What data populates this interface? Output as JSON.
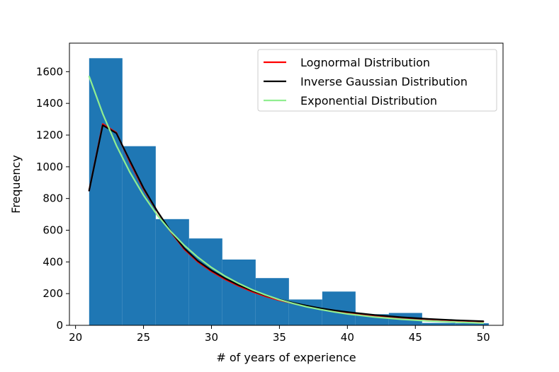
{
  "chart_data": {
    "type": "bar",
    "subtype": "histogram-with-fitted-curves",
    "title": "",
    "xlabel": "# of years of experience",
    "ylabel": "Frequency",
    "xlim": [
      19.55,
      51.45
    ],
    "ylim": [
      0,
      1780
    ],
    "xticks": [
      20,
      25,
      30,
      35,
      40,
      45,
      50
    ],
    "yticks": [
      0,
      200,
      400,
      600,
      800,
      1000,
      1200,
      1400,
      1600
    ],
    "bar_color": "#1f77b4",
    "bins": [
      {
        "x0": 21.0,
        "x1": 23.45,
        "value": 1685
      },
      {
        "x0": 23.45,
        "x1": 25.9,
        "value": 1130
      },
      {
        "x0": 25.9,
        "x1": 28.35,
        "value": 670
      },
      {
        "x0": 28.35,
        "x1": 30.8,
        "value": 548
      },
      {
        "x0": 30.8,
        "x1": 33.25,
        "value": 415
      },
      {
        "x0": 33.25,
        "x1": 35.7,
        "value": 298
      },
      {
        "x0": 35.7,
        "x1": 38.15,
        "value": 163
      },
      {
        "x0": 38.15,
        "x1": 40.6,
        "value": 213
      },
      {
        "x0": 40.6,
        "x1": 43.05,
        "value": 70
      },
      {
        "x0": 43.05,
        "x1": 45.5,
        "value": 78
      },
      {
        "x0": 45.5,
        "x1": 47.95,
        "value": 15
      },
      {
        "x0": 47.95,
        "x1": 50.4,
        "value": 13
      }
    ],
    "legend_position": "top-right",
    "series": [
      {
        "name": "Lognormal Distribution",
        "color": "#ff0000",
        "x": [
          21,
          22,
          23,
          24,
          25,
          26,
          27,
          28,
          29,
          30,
          31,
          32,
          33,
          34,
          35,
          36,
          37,
          38,
          39,
          40,
          42,
          44,
          46,
          48,
          50
        ],
        "y": [
          850,
          1270,
          1215,
          1030,
          860,
          720,
          590,
          480,
          400,
          340,
          290,
          248,
          212,
          182,
          158,
          138,
          120,
          105,
          92,
          80,
          62,
          48,
          38,
          30,
          24
        ]
      },
      {
        "name": "Inverse Gaussian Distribution",
        "color": "#000000",
        "x": [
          21,
          22,
          23,
          24,
          25,
          26,
          27,
          28,
          29,
          30,
          31,
          32,
          33,
          34,
          35,
          36,
          37,
          38,
          39,
          40,
          42,
          44,
          46,
          48,
          50
        ],
        "y": [
          850,
          1262,
          1212,
          1038,
          866,
          722,
          594,
          486,
          406,
          346,
          296,
          254,
          218,
          188,
          163,
          142,
          124,
          108,
          95,
          84,
          65,
          51,
          40,
          32,
          26
        ]
      },
      {
        "name": "Exponential Distribution",
        "color": "#90ee90",
        "x": [
          21,
          22,
          23,
          24,
          25,
          26,
          27,
          28,
          29,
          30,
          31,
          32,
          33,
          34,
          35,
          36,
          37,
          38,
          39,
          40,
          42,
          44,
          46,
          48,
          50
        ],
        "y": [
          1570,
          1335,
          1135,
          965,
          820,
          697,
          593,
          504,
          429,
          365,
          310,
          264,
          224,
          191,
          162,
          138,
          117,
          100,
          85,
          72,
          52,
          38,
          27,
          20,
          14
        ]
      }
    ]
  }
}
